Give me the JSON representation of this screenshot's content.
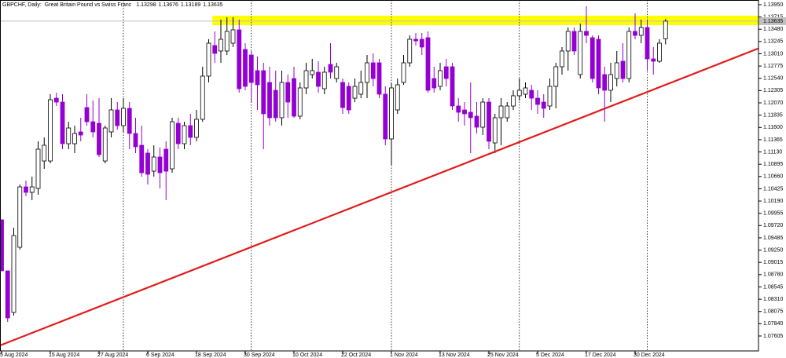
{
  "chart_data": {
    "type": "candlestick",
    "symbol": "GBPCHF, Daily:",
    "description": "Great Britain Pound vs Swiss Franc",
    "categories": [
      "5 Aug 2024",
      null,
      null,
      null,
      null,
      null,
      null,
      null,
      "15 Aug 2024",
      null,
      null,
      null,
      null,
      null,
      null,
      null,
      "27 Aug 2024",
      null,
      null,
      null,
      null,
      null,
      null,
      null,
      "6 Sep 2024",
      null,
      null,
      null,
      null,
      null,
      null,
      null,
      "18 Sep 2024",
      null,
      null,
      null,
      null,
      null,
      null,
      null,
      "30 Sep 2024",
      null,
      null,
      null,
      null,
      null,
      null,
      null,
      "10 Oct 2024",
      null,
      null,
      null,
      null,
      null,
      null,
      null,
      "22 Oct 2024",
      null,
      null,
      null,
      null,
      null,
      null,
      null,
      "1 Nov 2024",
      null,
      null,
      null,
      null,
      null,
      null,
      null,
      "13 Nov 2024",
      null,
      null,
      null,
      null,
      null,
      null,
      null,
      "25 Nov 2024",
      null,
      null,
      null,
      null,
      null,
      null,
      null,
      "5 Dec 2024",
      null,
      null,
      null,
      null,
      null,
      null,
      null,
      "17 Dec 2024",
      null,
      null,
      null,
      null,
      null,
      null,
      null,
      "30 Dec 2024",
      null,
      null,
      null,
      null,
      null
    ],
    "open": [
      1.0983,
      1.08853,
      1.08056,
      1.09304,
      1.10461,
      1.10356,
      1.10431,
      1.10957,
      1.10957,
      1.1216,
      1.12085,
      1.11288,
      1.11288,
      1.11514,
      1.1198,
      1.11709,
      1.11679,
      1.10957,
      1.11514,
      1.11935,
      1.11634,
      1.11965,
      1.11484,
      1.11258,
      1.11108,
      1.10762,
      1.11033,
      1.11183,
      1.10807,
      1.11679,
      1.11288,
      1.11634,
      1.11409,
      1.11755,
      1.12582,
      1.13168,
      1.13063,
      1.13063,
      1.13213,
      1.13469,
      1.13093,
      1.12987,
      1.12687,
      1.12687,
      1.12461,
      1.12311,
      1.11785,
      1.12461,
      1.12536,
      1.11815,
      1.12356,
      1.12612,
      1.12657,
      1.12341,
      1.12807,
      1.12536,
      1.12461,
      1.12386,
      1.1216,
      1.12236,
      1.12461,
      1.12837,
      1.12837,
      1.12236,
      1.11379,
      1.11935,
      1.12461,
      1.12837,
      1.13288,
      1.13288,
      1.13318,
      1.12536,
      1.12386,
      1.12762,
      1.12762,
      1.1201,
      1.11935,
      1.1189,
      1.11815,
      1.11604,
      1.12085,
      1.11303,
      1.11785,
      1.11785,
      1.1201,
      1.12206,
      1.12236,
      1.12311,
      1.1216,
      1.12085,
      1.1201,
      1.12386,
      1.12762,
      1.13063,
      1.13439,
      1.12612,
      1.13439,
      1.13318,
      1.13288,
      1.12612,
      1.12311,
      1.12536,
      1.12867,
      1.12536,
      1.13439,
      1.13363,
      1.13514,
      1.12912,
      1.12867,
      1.13298
    ],
    "high": [
      1.0983,
      1.08853,
      1.0968,
      1.10507,
      1.10582,
      1.10657,
      1.11334,
      1.11409,
      1.12236,
      1.12266,
      1.12236,
      1.11709,
      1.11634,
      1.11785,
      1.12236,
      1.12115,
      1.1216,
      1.11634,
      1.1216,
      1.12085,
      1.1216,
      1.12085,
      1.11785,
      1.11634,
      1.11183,
      1.11258,
      1.11213,
      1.11334,
      1.11785,
      1.11785,
      1.11709,
      1.1186,
      1.11935,
      1.12762,
      1.13288,
      1.13439,
      1.13664,
      1.13709,
      1.13709,
      1.13664,
      1.13213,
      1.13063,
      1.12957,
      1.12837,
      1.12762,
      1.12687,
      1.12687,
      1.12612,
      1.12762,
      1.12461,
      1.12837,
      1.12912,
      1.12867,
      1.12762,
      1.13213,
      1.12837,
      1.12536,
      1.12461,
      1.12536,
      1.12687,
      1.12987,
      1.13018,
      1.12912,
      1.12386,
      1.12461,
      1.12536,
      1.12987,
      1.13363,
      1.13408,
      1.13408,
      1.13439,
      1.12762,
      1.12837,
      1.12912,
      1.12837,
      1.1216,
      1.12085,
      1.12461,
      1.12085,
      1.1216,
      1.1216,
      1.1186,
      1.1216,
      1.12085,
      1.12311,
      1.12536,
      1.12461,
      1.12416,
      1.12311,
      1.12236,
      1.12536,
      1.12837,
      1.13138,
      1.13514,
      1.13514,
      1.13589,
      1.1392,
      1.13363,
      1.13363,
      1.12762,
      1.12837,
      1.13063,
      1.13213,
      1.13514,
      1.13784,
      1.13664,
      1.13664,
      1.13138,
      1.13288,
      1.13676
    ],
    "low": [
      1.08853,
      1.07875,
      1.07996,
      1.09259,
      1.10281,
      1.10206,
      1.10311,
      1.10807,
      1.10912,
      1.1201,
      1.11183,
      1.11183,
      1.11108,
      1.11334,
      1.11634,
      1.11409,
      1.11033,
      1.10912,
      1.11409,
      1.11559,
      1.11514,
      1.11183,
      1.11108,
      1.10657,
      1.10507,
      1.10657,
      1.10431,
      1.10206,
      1.10732,
      1.11183,
      1.11183,
      1.11258,
      1.11334,
      1.11709,
      1.12461,
      1.12837,
      1.12837,
      1.12987,
      1.13138,
      1.12266,
      1.12311,
      1.12085,
      1.11935,
      1.11183,
      1.11634,
      1.11709,
      1.11634,
      1.11785,
      1.11785,
      1.11755,
      1.12236,
      1.12536,
      1.12266,
      1.12236,
      1.12536,
      1.12461,
      1.1186,
      1.1186,
      1.12085,
      1.1216,
      1.1216,
      1.12386,
      1.1216,
      1.11258,
      1.10882,
      1.1186,
      1.12416,
      1.12762,
      1.13168,
      1.12987,
      1.12266,
      1.12266,
      1.12311,
      1.12386,
      1.11935,
      1.11709,
      1.11634,
      1.11108,
      1.11484,
      1.11454,
      1.11183,
      1.11108,
      1.11258,
      1.11709,
      1.11935,
      1.12115,
      1.1216,
      1.11935,
      1.1186,
      1.11785,
      1.11935,
      1.11965,
      1.12612,
      1.12687,
      1.12987,
      1.12536,
      1.13213,
      1.12461,
      1.12236,
      1.11709,
      1.12085,
      1.12386,
      1.12461,
      1.12461,
      1.13288,
      1.13213,
      1.12687,
      1.12612,
      1.12837,
      1.13189
    ],
    "close": [
      1.08853,
      1.07951,
      1.09529,
      1.10461,
      1.10356,
      1.10461,
      1.11183,
      1.11258,
      1.1213,
      1.12085,
      1.11288,
      1.11589,
      1.11484,
      1.11454,
      1.11709,
      1.11514,
      1.11078,
      1.11589,
      1.11935,
      1.11634,
      1.11965,
      1.11484,
      1.11228,
      1.10732,
      1.10702,
      1.11033,
      1.10732,
      1.10762,
      1.11709,
      1.11288,
      1.11634,
      1.11409,
      1.11755,
      1.12582,
      1.13213,
      1.13018,
      1.13288,
      1.13439,
      1.13469,
      1.12341,
      1.12386,
      1.12461,
      1.12416,
      1.1186,
      1.11785,
      1.11785,
      1.12461,
      1.12085,
      1.11815,
      1.12356,
      1.12687,
      1.12687,
      1.12386,
      1.12657,
      1.12657,
      1.12762,
      1.1198,
      1.11935,
      1.12386,
      1.12461,
      1.12837,
      1.12536,
      1.12236,
      1.11379,
      1.12356,
      1.12416,
      1.12837,
      1.13288,
      1.13258,
      1.13138,
      1.12311,
      1.12356,
      1.12687,
      1.12536,
      1.1201,
      1.1189,
      1.1186,
      1.11785,
      1.11604,
      1.12085,
      1.11334,
      1.11785,
      1.1201,
      1.1201,
      1.12206,
      1.12311,
      1.12356,
      1.1216,
      1.1204,
      1.11965,
      1.12386,
      1.12762,
      1.13063,
      1.13439,
      1.13063,
      1.13439,
      1.13363,
      1.12536,
      1.12356,
      1.12311,
      1.12612,
      1.12837,
      1.12536,
      1.13439,
      1.13363,
      1.13514,
      1.12912,
      1.12867,
      1.13213,
      1.13635
    ],
    "up_color": "#ffffff",
    "down_color": "#9400d3",
    "ylim": [
      1.07319,
      1.1404
    ],
    "yticks": [
      1.07605,
      {
        "value": 1.0784,
        "label": "1.07840"
      },
      1.08075,
      {
        "value": 1.0831,
        "label": "1.08310"
      },
      1.08545,
      {
        "value": 1.0878,
        "label": "1.08780"
      },
      1.09015,
      {
        "value": 1.0925,
        "label": "1.09250"
      },
      1.09485,
      {
        "value": 1.0972,
        "label": "1.09720"
      },
      1.09955,
      {
        "value": 1.1019,
        "label": "1.10190"
      },
      1.10425,
      {
        "value": 1.1066,
        "label": "1.10660"
      },
      1.10895,
      {
        "value": 1.1113,
        "label": "1.11130"
      },
      1.11365,
      {
        "value": 1.116,
        "label": "1.11600"
      },
      1.11835,
      {
        "value": 1.1207,
        "label": "1.12070"
      },
      1.12305,
      {
        "value": 1.1254,
        "label": "1.12540"
      },
      1.12775,
      {
        "value": 1.1301,
        "label": "1.13010"
      },
      1.13245,
      {
        "value": 1.1348,
        "label": "1.13480"
      },
      1.13715,
      {
        "value": 1.1395,
        "label": "1.13950"
      }
    ],
    "period_separators": [
      20,
      41,
      64,
      85,
      106
    ],
    "highlight_band": {
      "ylim": [
        1.13559,
        1.13739
      ],
      "start": 35,
      "color": "#ffff00"
    },
    "trendline": {
      "points": [
        [
          0,
          1.07436
        ],
        [
          109,
          1.12416
        ]
      ],
      "color": "#e31b1b"
    }
  }
}
